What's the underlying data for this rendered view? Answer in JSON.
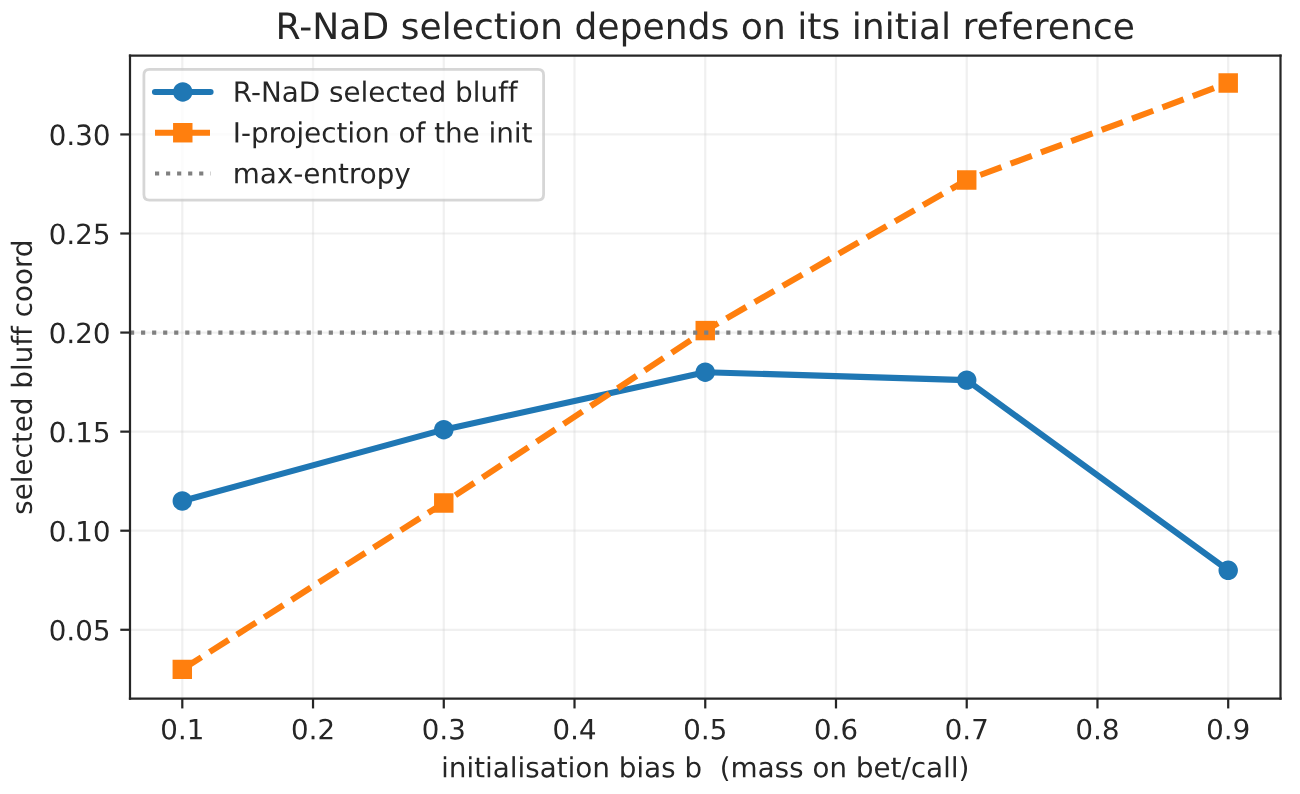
{
  "chart_data": {
    "type": "line",
    "title": "R-NaD selection depends on its initial reference",
    "xlabel": "initialisation bias b  (mass on bet/call)",
    "ylabel": "selected bluff coord",
    "x": [
      0.1,
      0.3,
      0.5,
      0.7,
      0.9
    ],
    "series": [
      {
        "name": "R-NaD selected bluff",
        "color": "#1f77b4",
        "values": [
          0.115,
          0.151,
          0.18,
          0.176,
          0.08
        ],
        "marker": "circle",
        "line_style": "solid"
      },
      {
        "name": "I-projection of the init",
        "color": "#ff7f0e",
        "values": [
          0.03,
          0.114,
          0.201,
          0.277,
          0.326
        ],
        "marker": "square",
        "line_style": "dashed"
      }
    ],
    "ref_lines": [
      {
        "axis": "y",
        "value": 0.2,
        "label": "max-entropy",
        "color": "#808080",
        "line_style": "dotted"
      }
    ],
    "xlim": [
      0.06,
      0.94
    ],
    "ylim": [
      0.0152,
      0.3398
    ],
    "xticks": [
      0.1,
      0.2,
      0.3,
      0.4,
      0.5,
      0.6,
      0.7,
      0.8,
      0.9
    ],
    "yticks": [
      0.05,
      {
        "value": 0.1,
        "label": "0.10"
      },
      0.15,
      {
        "value": 0.2,
        "label": "0.20"
      },
      0.25,
      {
        "value": 0.3,
        "label": "0.30"
      }
    ],
    "grid": true,
    "legend": "top left"
  }
}
